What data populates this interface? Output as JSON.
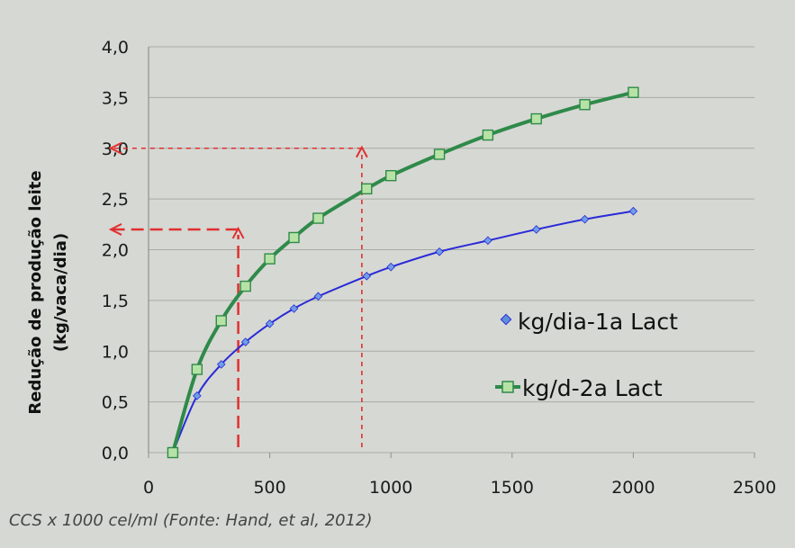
{
  "chart_data": {
    "type": "line",
    "ylabel_line1": "Redução de produção leite",
    "ylabel_line2": "(kg/vaca/dia)",
    "caption": "CCS x 1000 cel/ml (Fonte: Hand, et al, 2012)",
    "xlim": [
      0,
      2500
    ],
    "ylim": [
      0,
      4
    ],
    "x_ticks": [
      0,
      500,
      1000,
      1500,
      2000,
      2500
    ],
    "x_tick_labels": [
      "0",
      "500",
      "1000",
      "1500",
      "2000",
      "2500"
    ],
    "y_ticks": [
      0,
      0.5,
      1,
      1.5,
      2,
      2.5,
      3,
      3.5,
      4
    ],
    "y_tick_labels": [
      "0,0",
      "0,5",
      "1,0",
      "1,5",
      "2,0",
      "2,5",
      "3,0",
      "3,5",
      "4,0"
    ],
    "grid": true,
    "legend_position": "right",
    "series": [
      {
        "name": "kg/dia-1a Lact",
        "color": "#2a2ad8",
        "marker": "diamond",
        "x": [
          100,
          200,
          300,
          400,
          500,
          600,
          700,
          900,
          1000,
          1200,
          1400,
          1600,
          1800,
          2000
        ],
        "y": [
          0.0,
          0.56,
          0.87,
          1.09,
          1.27,
          1.42,
          1.54,
          1.74,
          1.83,
          1.98,
          2.09,
          2.2,
          2.3,
          2.38
        ]
      },
      {
        "name": "kg/d-2a Lact",
        "color": "#2f8a4a",
        "marker": "square",
        "x": [
          100,
          200,
          300,
          400,
          500,
          600,
          700,
          900,
          1000,
          1200,
          1400,
          1600,
          1800,
          2000
        ],
        "y": [
          0.0,
          0.82,
          1.3,
          1.64,
          1.91,
          2.12,
          2.31,
          2.6,
          2.73,
          2.94,
          3.13,
          3.29,
          3.43,
          3.55
        ]
      }
    ],
    "annotations": [
      {
        "type": "dashed-arrows",
        "color": "#e03030",
        "x": 370,
        "y": 2.2,
        "dash": "long"
      },
      {
        "type": "dashed-arrows",
        "color": "#e03030",
        "x": 880,
        "y": 3.0,
        "dash": "short"
      }
    ]
  }
}
